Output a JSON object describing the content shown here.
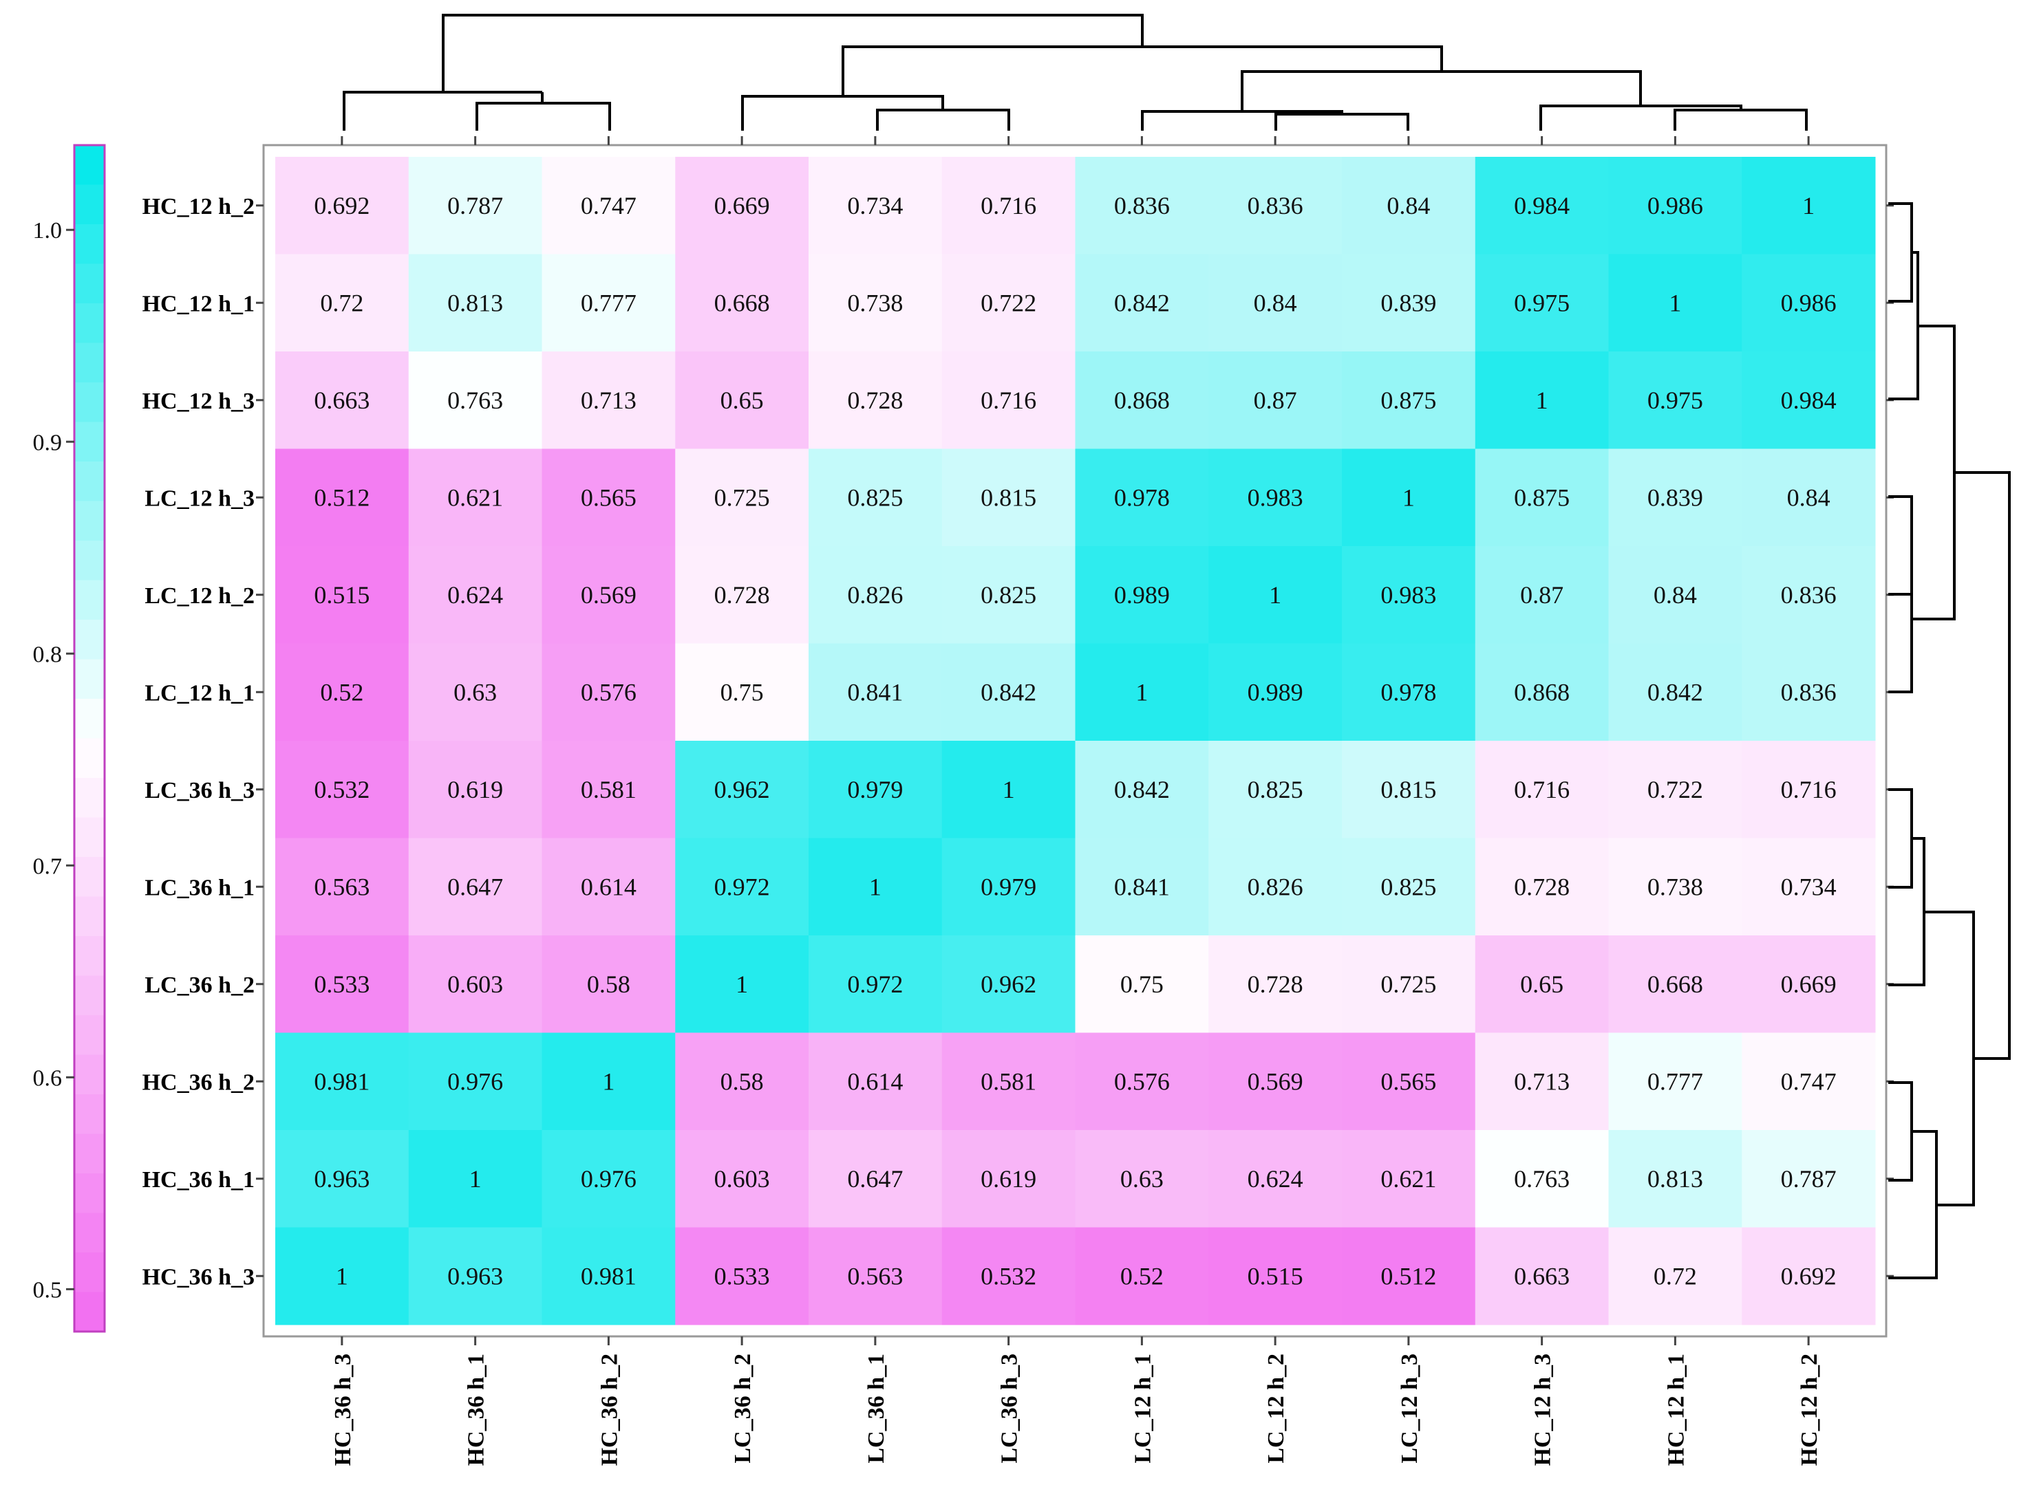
{
  "chart_data": {
    "type": "heatmap",
    "title": "",
    "xlabel": "",
    "ylabel": "",
    "rows": [
      "HC_12 h_2",
      "HC_12 h_1",
      "HC_12 h_3",
      "LC_12 h_3",
      "LC_12 h_2",
      "LC_12 h_1",
      "LC_36 h_3",
      "LC_36 h_1",
      "LC_36 h_2",
      "HC_36 h_2",
      "HC_36 h_1",
      "HC_36 h_3"
    ],
    "columns": [
      "HC_36 h_3",
      "HC_36 h_1",
      "HC_36 h_2",
      "LC_36 h_2",
      "LC_36 h_1",
      "LC_36 h_3",
      "LC_12 h_1",
      "LC_12 h_2",
      "LC_12 h_3",
      "HC_12 h_3",
      "HC_12 h_1",
      "HC_12 h_2"
    ],
    "values": [
      [
        "0.692",
        "0.787",
        "0.747",
        "0.669",
        "0.734",
        "0.716",
        "0.836",
        "0.836",
        "0.84",
        "0.984",
        "0.986",
        "1"
      ],
      [
        "0.72",
        "0.813",
        "0.777",
        "0.668",
        "0.738",
        "0.722",
        "0.842",
        "0.84",
        "0.839",
        "0.975",
        "1",
        "0.986"
      ],
      [
        "0.663",
        "0.763",
        "0.713",
        "0.65",
        "0.728",
        "0.716",
        "0.868",
        "0.87",
        "0.875",
        "1",
        "0.975",
        "0.984"
      ],
      [
        "0.512",
        "0.621",
        "0.565",
        "0.725",
        "0.825",
        "0.815",
        "0.978",
        "0.983",
        "1",
        "0.875",
        "0.839",
        "0.84"
      ],
      [
        "0.515",
        "0.624",
        "0.569",
        "0.728",
        "0.826",
        "0.825",
        "0.989",
        "1",
        "0.983",
        "0.87",
        "0.84",
        "0.836"
      ],
      [
        "0.52",
        "0.63",
        "0.576",
        "0.75",
        "0.841",
        "0.842",
        "1",
        "0.989",
        "0.978",
        "0.868",
        "0.842",
        "0.836"
      ],
      [
        "0.532",
        "0.619",
        "0.581",
        "0.962",
        "0.979",
        "1",
        "0.842",
        "0.825",
        "0.815",
        "0.716",
        "0.722",
        "0.716"
      ],
      [
        "0.563",
        "0.647",
        "0.614",
        "0.972",
        "1",
        "0.979",
        "0.841",
        "0.826",
        "0.825",
        "0.728",
        "0.738",
        "0.734"
      ],
      [
        "0.533",
        "0.603",
        "0.58",
        "1",
        "0.972",
        "0.962",
        "0.75",
        "0.728",
        "0.725",
        "0.65",
        "0.668",
        "0.669"
      ],
      [
        "0.981",
        "0.976",
        "1",
        "0.58",
        "0.614",
        "0.581",
        "0.576",
        "0.569",
        "0.565",
        "0.713",
        "0.777",
        "0.747"
      ],
      [
        "0.963",
        "1",
        "0.976",
        "0.603",
        "0.647",
        "0.619",
        "0.63",
        "0.624",
        "0.621",
        "0.763",
        "0.813",
        "0.787"
      ],
      [
        "1",
        "0.963",
        "0.981",
        "0.533",
        "0.563",
        "0.532",
        "0.52",
        "0.515",
        "0.512",
        "0.663",
        "0.72",
        "0.692"
      ]
    ],
    "color_scale": {
      "range": [
        0.48,
        1.04
      ],
      "ticks": [
        "1.0",
        "0.9",
        "0.8",
        "0.7",
        "0.6",
        "0.5"
      ],
      "low_color": "#f26cf0",
      "mid_color": "#ffffff",
      "high_color": "#00e8ea",
      "mid_value": 0.76
    },
    "legend": "left",
    "dendrograms": [
      "top",
      "right"
    ]
  }
}
